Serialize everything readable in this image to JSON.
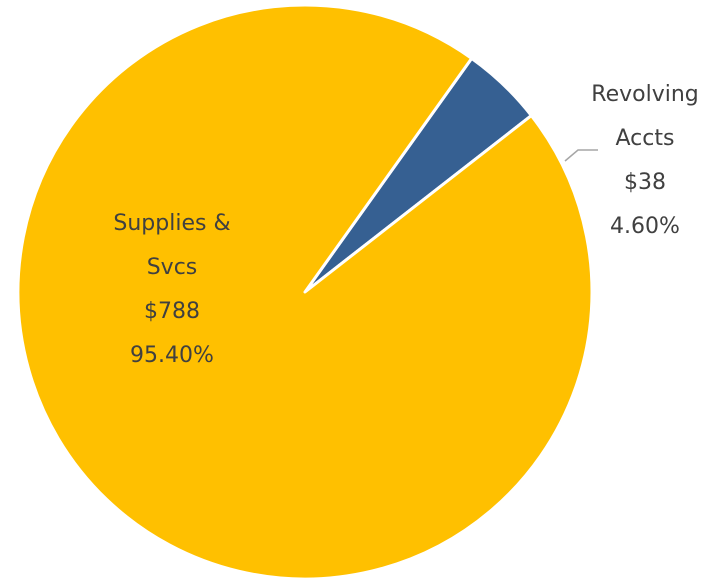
{
  "chart_data": {
    "type": "pie",
    "slices": [
      {
        "category_lines": [
          "Revolving",
          "Accts"
        ],
        "value": 38,
        "value_label": "$38",
        "percent": 4.6,
        "percent_label": "4.60%",
        "color": "#366092"
      },
      {
        "category_lines": [
          "Supplies &",
          "Svcs"
        ],
        "value": 788,
        "value_label": "$788",
        "percent": 95.4,
        "percent_label": "95.40%",
        "color": "#FFC000"
      }
    ],
    "legend": "none",
    "label_color": "#404040",
    "leader_line_color": "#A6A6A6"
  }
}
